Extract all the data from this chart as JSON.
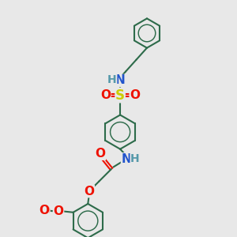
{
  "background_color": "#e8e8e8",
  "bond_color": "#2d6b4a",
  "N_color": "#2255cc",
  "O_color": "#ee1100",
  "S_color": "#cccc00",
  "H_color": "#5599aa",
  "bond_width": 1.5,
  "font_size": 10,
  "figsize": [
    3.0,
    3.0
  ],
  "dpi": 100,
  "xlim": [
    0,
    10
  ],
  "ylim": [
    0,
    10
  ]
}
